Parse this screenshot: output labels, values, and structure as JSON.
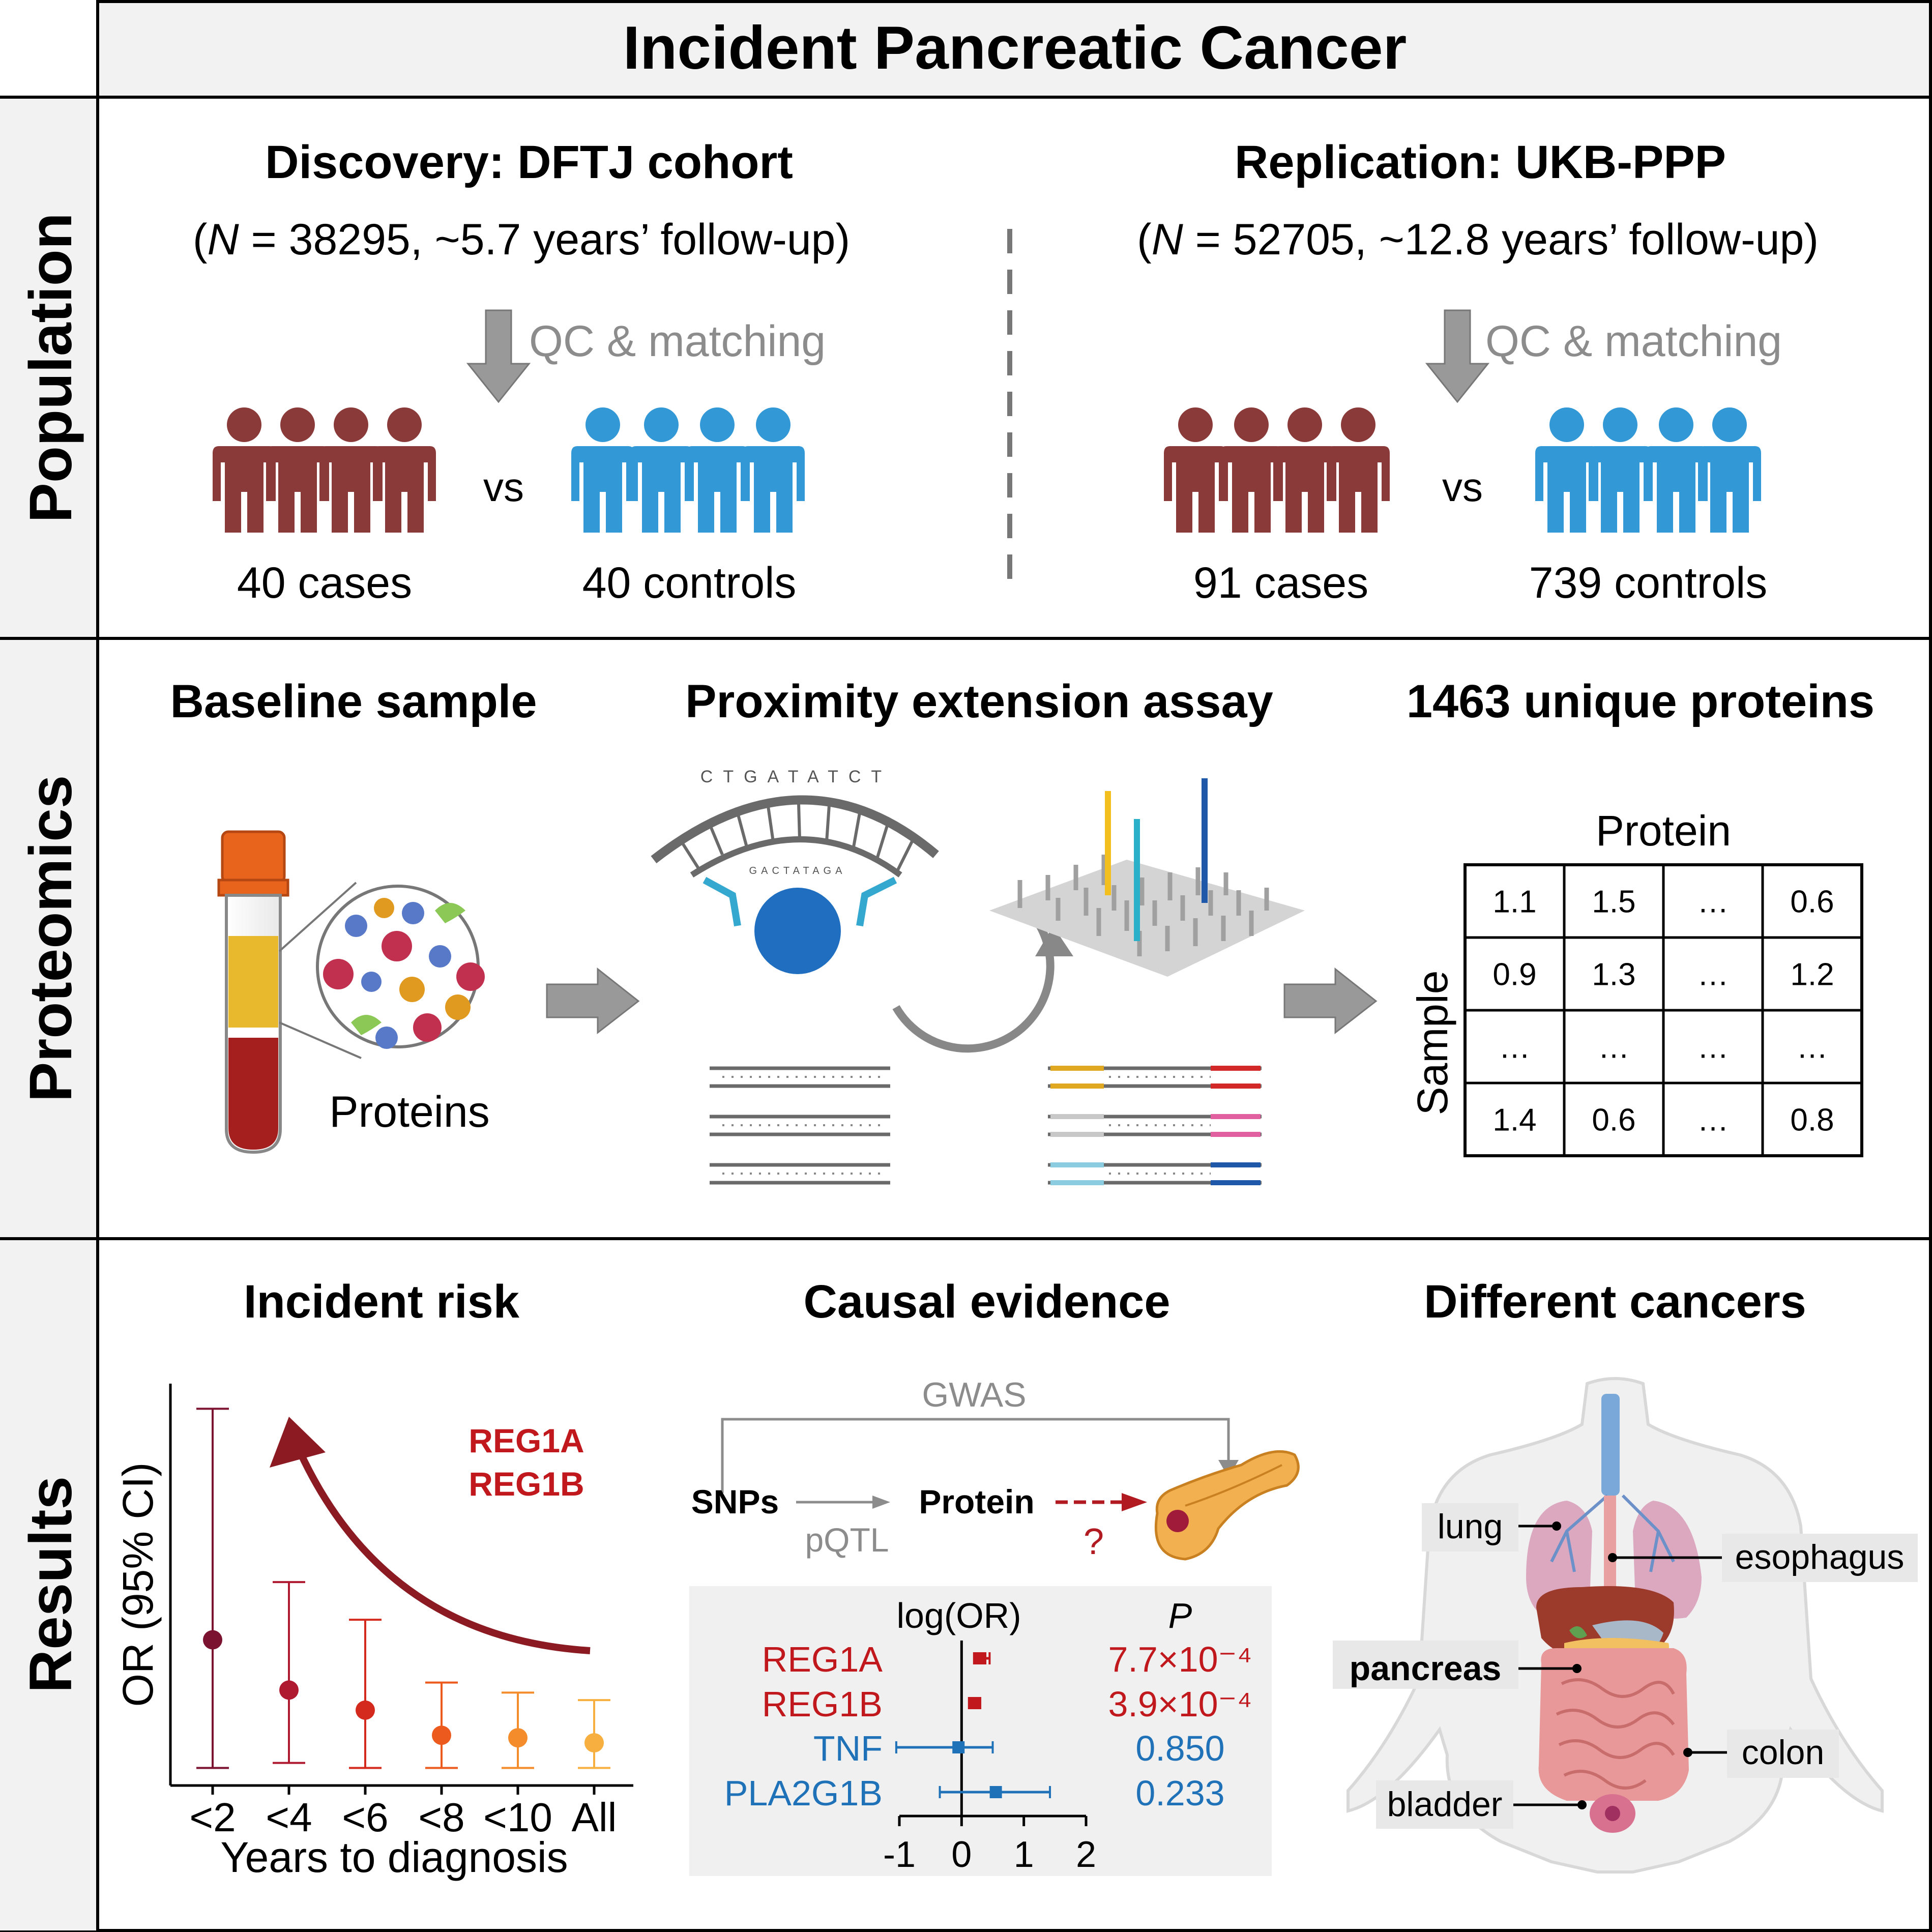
{
  "title": "Incident Pancreatic Cancer",
  "rows": {
    "population": "Population",
    "proteomics": "Proteomics",
    "results": "Results"
  },
  "population": {
    "discovery": {
      "title": "Discovery: DFTJ cohort",
      "n_open": "(",
      "n_symbol": "N",
      "n_rest": " = 38295, ~5.7 years’ follow-up)",
      "qc": "QC & matching",
      "cases": "40 cases",
      "controls": "40 controls"
    },
    "replication": {
      "title": "Replication: UKB-PPP",
      "n_open": "(",
      "n_symbol": "N",
      "n_rest": " = 52705, ~12.8 years’ follow-up)",
      "qc": "QC & matching",
      "cases": "91 cases",
      "controls": "739 controls"
    },
    "vs": "vs",
    "colors": {
      "cases": "#8b3a3a",
      "controls": "#3399d6"
    }
  },
  "proteomics": {
    "baseline_title": "Baseline sample",
    "pea_title": "Proximity extension assay",
    "unique_title": "1463 unique proteins",
    "proteins_label": "Proteins",
    "dna_top": "CTGATATCT",
    "dna_bottom": "GACTATAGA",
    "matrix": {
      "col_header": "Protein",
      "row_header": "Sample",
      "cells": [
        [
          "1.1",
          "1.5",
          "…",
          "0.6"
        ],
        [
          "0.9",
          "1.3",
          "…",
          "1.2"
        ],
        [
          "…",
          "…",
          "…",
          "…"
        ],
        [
          "1.4",
          "0.6",
          "…",
          "0.8"
        ]
      ]
    }
  },
  "results": {
    "incident_title": "Incident risk",
    "causal_title": "Causal evidence",
    "cancers_title": "Different cancers",
    "incident_chart": {
      "ylabel": "OR (95% CI)",
      "xlabel": "Years to diagnosis",
      "annotation": [
        "REG1A",
        "REG1B"
      ]
    },
    "causal": {
      "gwas": "GWAS",
      "snps": "SNPs",
      "protein": "Protein",
      "pqtl": "pQTL",
      "question": "?"
    },
    "forest": {
      "header_or": "log(OR)",
      "header_p": "P"
    },
    "organs": [
      "lung",
      "esophagus",
      "pancreas",
      "colon",
      "bladder"
    ]
  },
  "chart_data": [
    {
      "type": "scatter",
      "title": "Incident risk",
      "xlabel": "Years to diagnosis",
      "ylabel": "OR (95% CI)",
      "categories": [
        "<2",
        "<4",
        "<6",
        "<8",
        "<10",
        "All"
      ],
      "values": [
        3.4,
        2.4,
        2.0,
        1.5,
        1.45,
        1.35
      ],
      "ci_low": [
        0.85,
        0.95,
        0.85,
        0.85,
        0.85,
        0.85
      ],
      "ci_high": [
        8.0,
        4.55,
        3.8,
        2.55,
        2.35,
        2.2
      ],
      "colors": [
        "#7a1230",
        "#b01a30",
        "#d42a1e",
        "#ec5a1e",
        "#f48c2c",
        "#f7b040"
      ],
      "ylim": [
        0.5,
        8.5
      ]
    },
    {
      "type": "scatter",
      "title": "log(OR)",
      "categories": [
        "REG1A",
        "REG1B",
        "TNF",
        "PLA2G1B"
      ],
      "values": [
        0.3,
        0.2,
        -0.05,
        0.55
      ],
      "ci_low": [
        0.2,
        0.12,
        -1.05,
        -0.35
      ],
      "ci_high": [
        0.45,
        0.3,
        0.5,
        1.42
      ],
      "p": [
        "7.7×10⁻⁴",
        "3.9×10⁻⁴",
        "0.850",
        "0.233"
      ],
      "colors": [
        "#c0181c",
        "#c0181c",
        "#1f72b8",
        "#1f72b8"
      ],
      "xticks": [
        "-1",
        "0",
        "1",
        "2"
      ],
      "xlim": [
        -1,
        2
      ]
    }
  ]
}
